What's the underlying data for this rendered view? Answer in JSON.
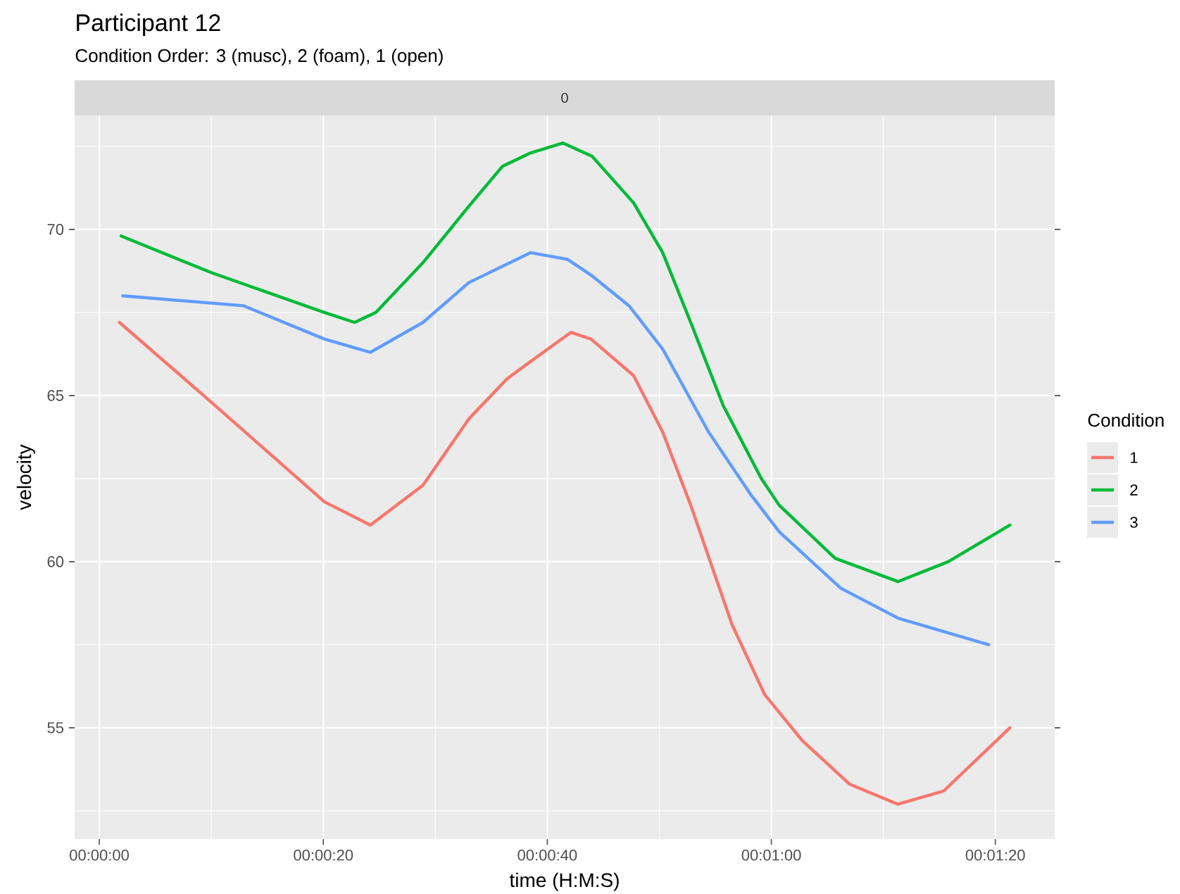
{
  "chart_data": {
    "type": "line",
    "title": "Participant 12",
    "subtitle": "Condition Order: 3 (musc), 2 (foam), 1 (open)",
    "annotations": [
      "0"
    ],
    "xlabel": "time (H:M:S)",
    "ylabel": "velocity",
    "legend_title": "Condition",
    "legend": "right",
    "grid": true,
    "xlim": [
      -0.000611,
      0.023694
    ],
    "ylim": [
      51.65,
      73.43
    ],
    "xticks": [
      {
        "value": 0,
        "label": "00:00:00"
      },
      {
        "value": 0.005556,
        "label": "00:00:20"
      },
      {
        "value": 0.011111,
        "label": "00:00:40"
      },
      {
        "value": 0.016667,
        "label": "00:01:00"
      },
      {
        "value": 0.022222,
        "label": "00:01:20"
      }
    ],
    "yticks": [
      55,
      60,
      65,
      70
    ],
    "series": [
      {
        "name": "1",
        "color": "#f8766d",
        "x": [
          0.0005,
          0.002778,
          0.005583,
          0.006722,
          0.008028,
          0.009167,
          0.010111,
          0.010556,
          0.011694,
          0.012194,
          0.01325,
          0.013972,
          0.014667,
          0.015694,
          0.0165,
          0.017444,
          0.018611,
          0.019806,
          0.020944,
          0.022583
        ],
        "values": [
          67.2,
          64.8,
          61.8,
          61.1,
          62.3,
          64.3,
          65.5,
          65.9,
          66.9,
          66.7,
          65.6,
          63.9,
          61.7,
          58.1,
          56.0,
          54.6,
          53.3,
          52.7,
          53.1,
          55.0
        ]
      },
      {
        "name": "2",
        "color": "#00ba38",
        "x": [
          0.000542,
          0.002778,
          0.005583,
          0.006333,
          0.006861,
          0.008028,
          0.009167,
          0.01,
          0.010694,
          0.0115,
          0.012222,
          0.01325,
          0.013972,
          0.014667,
          0.015472,
          0.016417,
          0.016861,
          0.01825,
          0.019806,
          0.021056,
          0.022583
        ],
        "values": [
          69.8,
          68.7,
          67.5,
          67.2,
          67.5,
          69.0,
          70.7,
          71.9,
          72.3,
          72.6,
          72.2,
          70.8,
          69.3,
          67.2,
          64.7,
          62.5,
          61.7,
          60.1,
          59.4,
          60.0,
          61.1
        ]
      },
      {
        "name": "3",
        "color": "#619cff",
        "x": [
          0.000583,
          0.003583,
          0.005583,
          0.006722,
          0.008028,
          0.009167,
          0.010694,
          0.011611,
          0.012222,
          0.013139,
          0.013972,
          0.015111,
          0.016167,
          0.016861,
          0.018389,
          0.019806,
          0.022056
        ],
        "values": [
          68.0,
          67.7,
          66.7,
          66.3,
          67.2,
          68.4,
          69.3,
          69.1,
          68.6,
          67.7,
          66.4,
          63.9,
          62.0,
          60.9,
          59.2,
          58.3,
          57.5
        ]
      }
    ]
  }
}
